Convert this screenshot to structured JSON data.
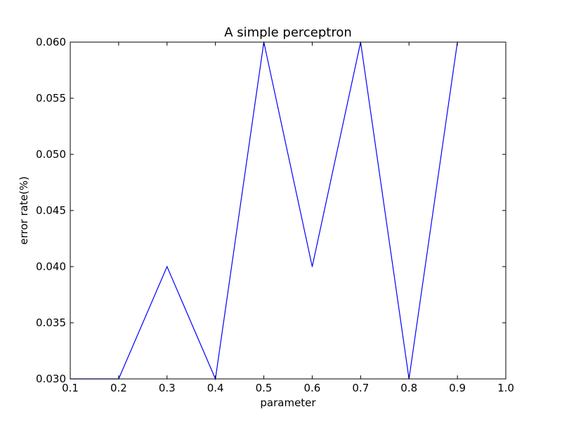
{
  "chart_data": {
    "type": "line",
    "title": "A simple perceptron",
    "xlabel": "parameter",
    "ylabel": "error rate(%)",
    "xlim": [
      0.1,
      1.0
    ],
    "ylim": [
      0.03,
      0.06
    ],
    "xticks": [
      "0.1",
      "0.2",
      "0.3",
      "0.4",
      "0.5",
      "0.6",
      "0.7",
      "0.8",
      "0.9",
      "1.0"
    ],
    "yticks": [
      "0.030",
      "0.035",
      "0.040",
      "0.045",
      "0.050",
      "0.055",
      "0.060"
    ],
    "grid": false,
    "series": [
      {
        "color": "#0000ff",
        "x": [
          0.1,
          0.2,
          0.3,
          0.4,
          0.5,
          0.6,
          0.7,
          0.8,
          0.9
        ],
        "y": [
          0.03,
          0.03,
          0.04,
          0.03,
          0.06,
          0.04,
          0.06,
          0.03,
          0.06
        ]
      }
    ]
  }
}
